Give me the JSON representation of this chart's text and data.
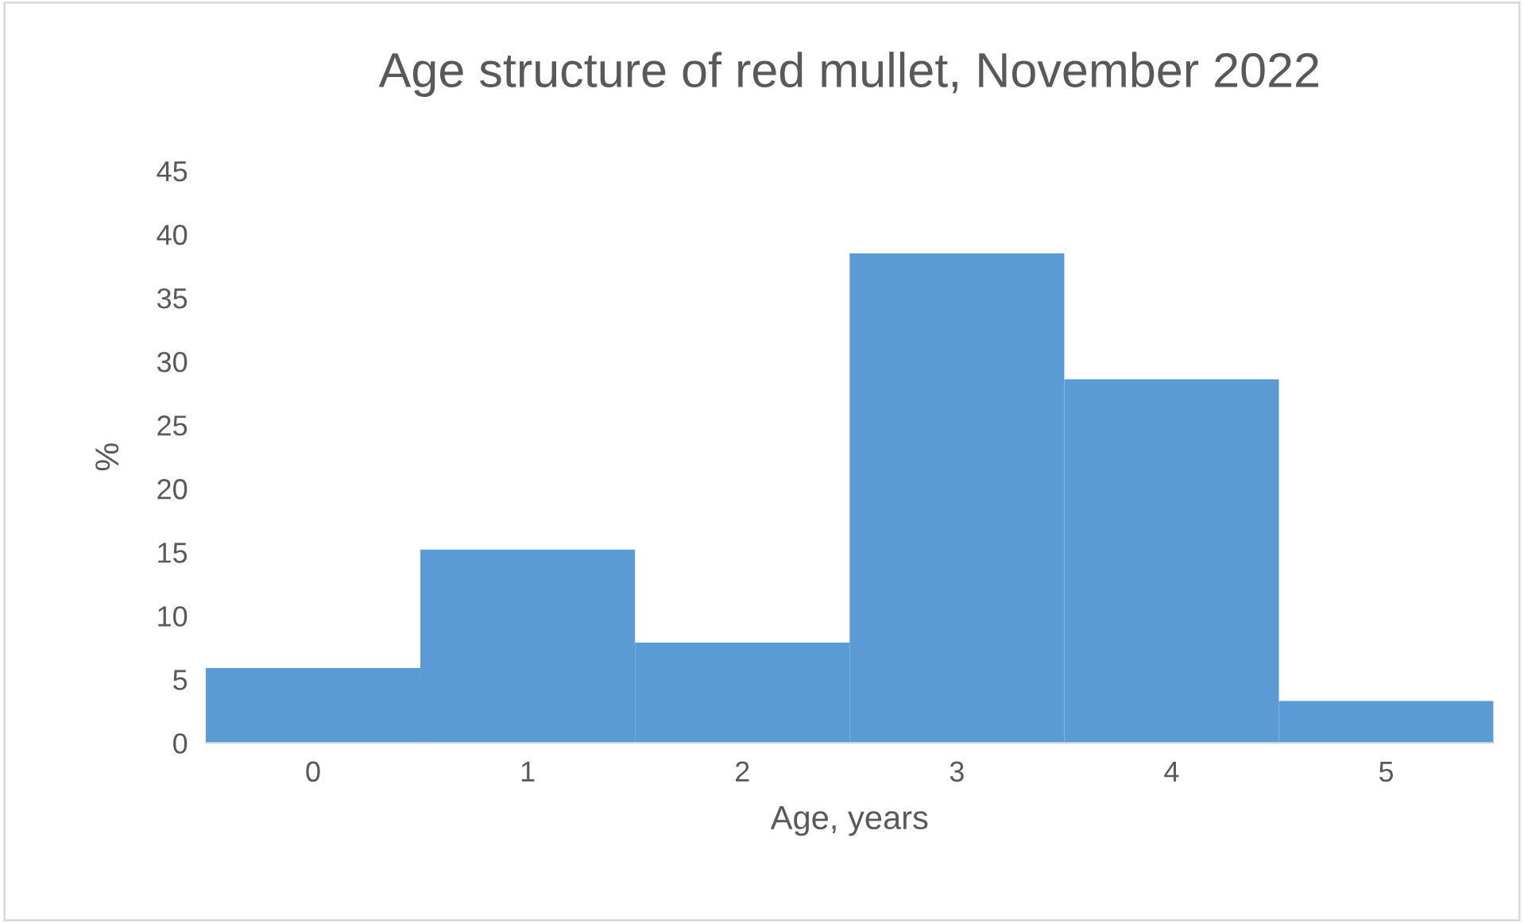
{
  "chart_data": {
    "type": "bar",
    "title": "Age structure of red mullet, November 2022",
    "xlabel": "Age, years",
    "ylabel": "%",
    "categories": [
      "0",
      "1",
      "2",
      "3",
      "4",
      "5"
    ],
    "values": [
      5.9,
      15.2,
      7.9,
      38.5,
      28.6,
      3.3
    ],
    "color": "#5b9bd5",
    "ylim": [
      0,
      45
    ],
    "yticks": [
      0,
      5,
      10,
      15,
      20,
      25,
      30,
      35,
      40,
      45
    ],
    "grid": false
  }
}
